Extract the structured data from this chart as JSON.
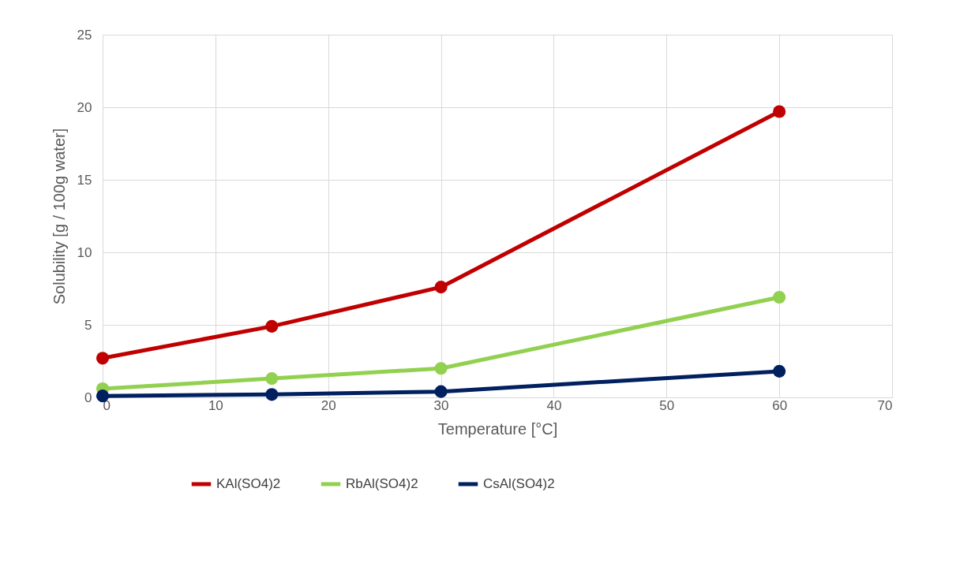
{
  "chart_data": {
    "type": "line",
    "xlabel": "Temperature [°C]",
    "ylabel": "Solubility [g / 100g water]",
    "x": [
      0,
      15,
      30,
      60
    ],
    "series": [
      {
        "name": "KAl(SO4)2",
        "color": "#c00000",
        "values": [
          2.7,
          4.9,
          7.6,
          19.7
        ]
      },
      {
        "name": "RbAl(SO4)2",
        "color": "#92d050",
        "values": [
          0.6,
          1.3,
          2.0,
          6.9
        ]
      },
      {
        "name": "CsAl(SO4)2",
        "color": "#002060",
        "values": [
          0.1,
          0.2,
          0.4,
          1.8
        ]
      }
    ],
    "xlim": [
      0,
      70
    ],
    "xticks": [
      0,
      10,
      20,
      30,
      40,
      50,
      60,
      70
    ],
    "ylim": [
      0,
      25
    ],
    "yticks": [
      0,
      5,
      10,
      15,
      20,
      25
    ],
    "grid": true,
    "legend": "bottom",
    "marker": "circle",
    "line_style": "solid"
  }
}
